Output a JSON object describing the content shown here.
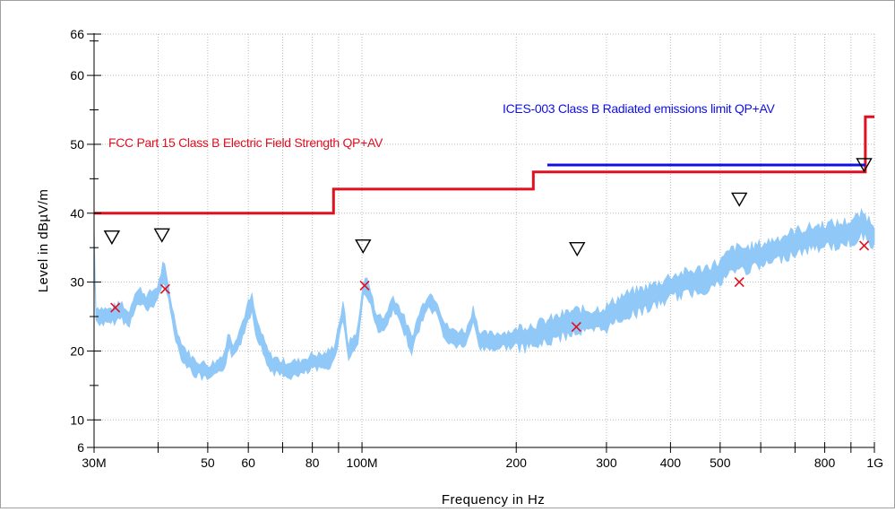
{
  "chart_data": {
    "type": "line",
    "xlabel": "Frequency in Hz",
    "ylabel": "Level in dBµV/m",
    "xscale": "log",
    "xlim_hz": [
      30000000,
      1000000000
    ],
    "ylim": [
      6,
      66
    ],
    "grid": true,
    "x_tick_labels": [
      {
        "value": 30000000,
        "label": "30M"
      },
      {
        "value": 50000000,
        "label": "50"
      },
      {
        "value": 60000000,
        "label": "60"
      },
      {
        "value": 80000000,
        "label": "80"
      },
      {
        "value": 100000000,
        "label": "100M"
      },
      {
        "value": 200000000,
        "label": "200"
      },
      {
        "value": 300000000,
        "label": "300"
      },
      {
        "value": 400000000,
        "label": "400"
      },
      {
        "value": 500000000,
        "label": "500"
      },
      {
        "value": 800000000,
        "label": "800"
      },
      {
        "value": 1000000000,
        "label": "1G"
      }
    ],
    "y_tick_labels": [
      {
        "value": 6,
        "label": "6"
      },
      {
        "value": 10,
        "label": "10"
      },
      {
        "value": 20,
        "label": "20"
      },
      {
        "value": 30,
        "label": "30"
      },
      {
        "value": 40,
        "label": "40"
      },
      {
        "value": 50,
        "label": "50"
      },
      {
        "value": 60,
        "label": "60"
      },
      {
        "value": 66,
        "label": "66"
      }
    ],
    "limits": [
      {
        "name": "FCC Part 15 Class B Electric Field Strength QP+AV",
        "color": "#e01020",
        "points_mhz_db": [
          [
            30,
            40.0
          ],
          [
            88,
            40.0
          ],
          [
            88,
            43.5
          ],
          [
            216,
            43.5
          ],
          [
            216,
            46.0
          ],
          [
            960,
            46.0
          ],
          [
            960,
            54.0
          ],
          [
            1000,
            54.0
          ]
        ]
      },
      {
        "name": "ICES-003 Class B Radiated emissions limit QP+AV",
        "color": "#1010e0",
        "points_mhz_db": [
          [
            230,
            47.0
          ],
          [
            960,
            47.0
          ]
        ]
      }
    ],
    "trace": {
      "color": "#90c8f8",
      "points_mhz_db": [
        [
          30,
          25.5
        ],
        [
          32,
          25.0
        ],
        [
          34,
          26.0
        ],
        [
          35,
          24.5
        ],
        [
          36,
          27.5
        ],
        [
          37,
          28.0
        ],
        [
          38,
          27.0
        ],
        [
          40,
          28.5
        ],
        [
          41,
          32.0
        ],
        [
          42,
          28.0
        ],
        [
          43,
          24.0
        ],
        [
          44,
          21.0
        ],
        [
          45,
          19.5
        ],
        [
          47,
          17.8
        ],
        [
          50,
          17.0
        ],
        [
          52,
          17.5
        ],
        [
          54,
          19.0
        ],
        [
          55,
          22.0
        ],
        [
          56,
          20.0
        ],
        [
          58,
          22.5
        ],
        [
          60,
          26.0
        ],
        [
          61,
          27.0
        ],
        [
          62,
          24.0
        ],
        [
          64,
          21.0
        ],
        [
          66,
          18.5
        ],
        [
          70,
          17.5
        ],
        [
          75,
          17.5
        ],
        [
          80,
          18.5
        ],
        [
          84,
          18.5
        ],
        [
          88,
          19.5
        ],
        [
          92,
          26.0
        ],
        [
          94,
          20.0
        ],
        [
          98,
          22.0
        ],
        [
          101,
          30.0
        ],
        [
          103,
          29.0
        ],
        [
          106,
          25.0
        ],
        [
          110,
          23.5
        ],
        [
          115,
          27.0
        ],
        [
          120,
          24.5
        ],
        [
          125,
          21.0
        ],
        [
          130,
          25.0
        ],
        [
          135,
          27.5
        ],
        [
          140,
          26.5
        ],
        [
          145,
          23.0
        ],
        [
          150,
          22.0
        ],
        [
          160,
          22.0
        ],
        [
          165,
          25.5
        ],
        [
          170,
          21.5
        ],
        [
          180,
          21.5
        ],
        [
          200,
          22.0
        ],
        [
          220,
          22.5
        ],
        [
          240,
          23.5
        ],
        [
          260,
          24.5
        ],
        [
          280,
          24.5
        ],
        [
          300,
          25.0
        ],
        [
          320,
          26.5
        ],
        [
          350,
          27.5
        ],
        [
          380,
          28.5
        ],
        [
          400,
          29.5
        ],
        [
          430,
          30.0
        ],
        [
          460,
          30.5
        ],
        [
          500,
          31.5
        ],
        [
          530,
          33.5
        ],
        [
          560,
          33.5
        ],
        [
          600,
          34.0
        ],
        [
          650,
          35.0
        ],
        [
          700,
          36.0
        ],
        [
          750,
          36.5
        ],
        [
          800,
          37.0
        ],
        [
          850,
          37.0
        ],
        [
          900,
          37.5
        ],
        [
          950,
          38.5
        ],
        [
          1000,
          37.0
        ]
      ]
    },
    "markers": {
      "quasi_peak_x": [
        [
          33.0,
          26.3
        ],
        [
          41.3,
          29.0
        ],
        [
          101.2,
          29.5
        ],
        [
          262.0,
          23.5
        ],
        [
          545.0,
          30.0
        ],
        [
          955.0,
          35.3
        ]
      ],
      "peak_triangles": [
        [
          32.5,
          36.5
        ],
        [
          40.7,
          36.8
        ],
        [
          100.5,
          35.2
        ],
        [
          263.0,
          34.8
        ],
        [
          545.0,
          42.0
        ],
        [
          955.0,
          47.0
        ]
      ]
    }
  }
}
